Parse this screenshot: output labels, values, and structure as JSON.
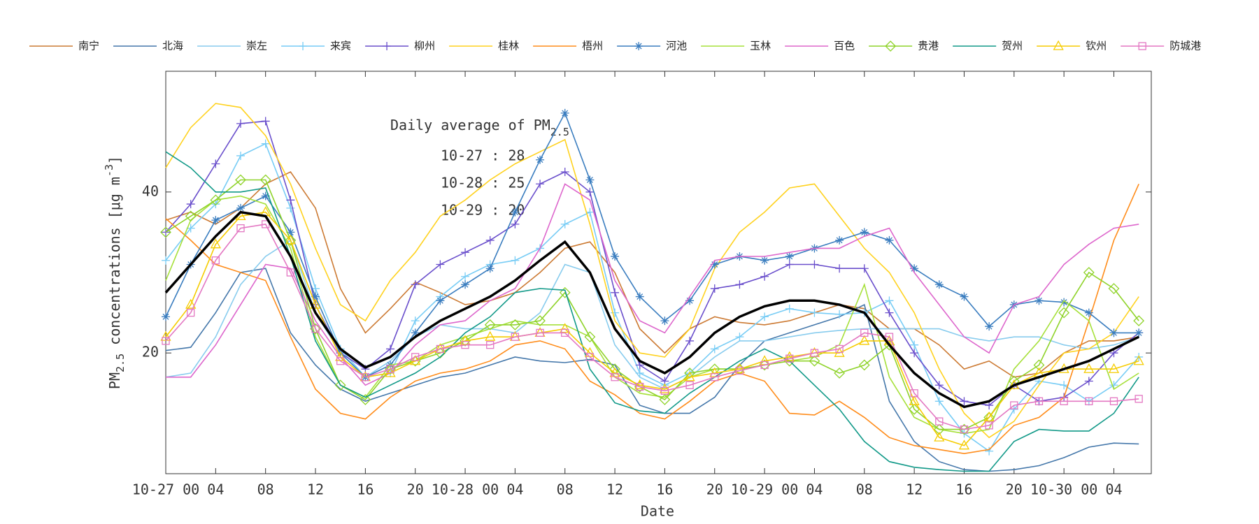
{
  "chart_data": {
    "type": "line",
    "x_label": "Date",
    "y_label": {
      "main": "PM",
      "sub": "2.5",
      "rest": " concentrations [μg m",
      "sup": "-3",
      "end": "]"
    },
    "annotation": {
      "title": "Daily average of PM",
      "title_sub": "2.5",
      "lines": [
        "10-27 : 28",
        "10-28 : 25",
        "10-29 : 20"
      ]
    },
    "x": [
      0,
      2,
      4,
      6,
      8,
      10,
      12,
      14,
      16,
      18,
      20,
      22,
      24,
      26,
      28,
      30,
      32,
      34,
      36,
      38,
      40,
      42,
      44,
      46,
      48,
      50,
      52,
      54,
      56,
      58,
      60,
      62,
      64,
      66,
      68,
      70,
      72,
      74,
      76,
      78
    ],
    "xlim": [
      0,
      79
    ],
    "xticks": [
      {
        "value": 0,
        "label": "10-27 00"
      },
      {
        "value": 4,
        "label": "04"
      },
      {
        "value": 8,
        "label": "08"
      },
      {
        "value": 12,
        "label": "12"
      },
      {
        "value": 16,
        "label": "16"
      },
      {
        "value": 20,
        "label": "20"
      },
      {
        "value": 24,
        "label": "10-28 00"
      },
      {
        "value": 28,
        "label": "04"
      },
      {
        "value": 32,
        "label": "08"
      },
      {
        "value": 36,
        "label": "12"
      },
      {
        "value": 40,
        "label": "16"
      },
      {
        "value": 44,
        "label": "20"
      },
      {
        "value": 48,
        "label": "10-29 00"
      },
      {
        "value": 52,
        "label": "04"
      },
      {
        "value": 56,
        "label": "08"
      },
      {
        "value": 60,
        "label": "12"
      },
      {
        "value": 64,
        "label": "16"
      },
      {
        "value": 68,
        "label": "20"
      },
      {
        "value": 72,
        "label": "10-30 00"
      },
      {
        "value": 76,
        "label": "04"
      }
    ],
    "ylim": [
      5,
      55
    ],
    "yticks": [
      20,
      40
    ],
    "series": [
      {
        "name": "南宁",
        "color": "#cc7a33",
        "marker": "none",
        "values": [
          36.5,
          37.5,
          36,
          38,
          41,
          42.5,
          38,
          28,
          22.5,
          25.5,
          28.8,
          27.5,
          26,
          26.5,
          27.5,
          30,
          33,
          33.8,
          30,
          23,
          20,
          23,
          24.5,
          23.8,
          23.5,
          24,
          25,
          26,
          25.5,
          23,
          23,
          21,
          18,
          19,
          17,
          17.5,
          20,
          21.5,
          21.5,
          22
        ]
      },
      {
        "name": "北海",
        "color": "#4477aa",
        "marker": "none",
        "values": [
          20.3,
          20.7,
          25,
          30,
          30.5,
          22.5,
          18.5,
          15.5,
          14,
          15,
          16,
          17,
          17.5,
          18.5,
          19.5,
          19,
          18.8,
          19.2,
          18.5,
          13.5,
          12.5,
          12.5,
          14.5,
          18.5,
          21.5,
          22.5,
          23.5,
          24.5,
          26,
          14,
          9,
          6.5,
          5.5,
          5.3,
          5.5,
          6,
          7,
          8.3,
          8.8,
          8.7
        ]
      },
      {
        "name": "崇左",
        "color": "#88ccee",
        "marker": "none",
        "values": [
          17,
          17.5,
          22,
          28.5,
          32,
          34,
          25,
          20,
          17,
          19,
          22,
          23.5,
          23,
          23,
          22.5,
          25,
          31,
          30,
          21,
          17,
          15.5,
          17,
          19.5,
          21.5,
          21.5,
          22,
          22.5,
          22.8,
          23,
          23,
          23,
          23,
          22,
          21.5,
          22,
          22,
          21,
          20.5,
          21,
          22
        ]
      },
      {
        "name": "来宾",
        "color": "#77ccf5",
        "marker": "plus",
        "values": [
          31.5,
          35.5,
          38.5,
          44.5,
          46,
          38,
          28,
          20.5,
          17,
          17.5,
          24,
          27,
          29.5,
          31,
          31.5,
          33,
          36,
          37.5,
          25,
          17.5,
          16,
          17.5,
          20.5,
          22,
          24.5,
          25.5,
          25,
          24.8,
          25,
          26.5,
          21,
          14,
          10,
          7.8,
          13,
          16.5,
          16,
          14,
          16,
          19.5
        ]
      },
      {
        "name": "柳州",
        "color": "#6a4fcc",
        "marker": "plus",
        "values": [
          35,
          38.5,
          43.5,
          48.5,
          48.8,
          39,
          26,
          20,
          18,
          20.5,
          28.5,
          31,
          32.5,
          34,
          36,
          41,
          42.5,
          40,
          27.5,
          18.5,
          16.5,
          21.5,
          28,
          28.5,
          29.5,
          31,
          31,
          30.5,
          30.5,
          25,
          20,
          16,
          14,
          13.5,
          16,
          14,
          14.5,
          16.5,
          20,
          22.5
        ]
      },
      {
        "name": "桂林",
        "color": "#ffd21f",
        "marker": "none",
        "values": [
          43,
          48,
          51,
          50.5,
          47,
          41,
          33,
          26,
          24,
          29,
          32.5,
          37,
          39,
          41.5,
          43.5,
          45,
          46.5,
          36,
          24,
          20,
          19.5,
          23,
          30.5,
          35,
          37.5,
          40.5,
          41,
          37,
          33,
          30,
          25,
          18,
          12.5,
          9.5,
          11.5,
          16,
          20,
          20.5,
          22.5,
          27
        ]
      },
      {
        "name": "梧州",
        "color": "#ff8c1a",
        "marker": "none",
        "values": [
          36.7,
          34,
          31,
          30,
          29,
          22,
          15.5,
          12.5,
          11.8,
          14.5,
          16.5,
          17.5,
          18,
          19,
          21,
          21.5,
          20.5,
          16.5,
          14.8,
          12.5,
          11.8,
          14,
          16.5,
          17.5,
          16.5,
          12.5,
          12.3,
          14,
          12,
          9.5,
          8.5,
          8,
          7.5,
          8,
          11,
          12,
          14.5,
          24,
          34,
          41
        ]
      },
      {
        "name": "河池",
        "color": "#3a7dbf",
        "marker": "star",
        "values": [
          24.5,
          31,
          36.5,
          38,
          39.5,
          35,
          27,
          20,
          17,
          18.5,
          22.5,
          26.5,
          28.5,
          30.5,
          37.5,
          44,
          49.8,
          41.5,
          32,
          27,
          24,
          26.5,
          31,
          32,
          31.5,
          32,
          33,
          34,
          35,
          34,
          30.5,
          28.5,
          27,
          23.3,
          26,
          26.5,
          26.3,
          25,
          22.5,
          22.5
        ]
      },
      {
        "name": "玉林",
        "color": "#a6e03a",
        "marker": "none",
        "values": [
          29,
          36.5,
          39,
          39.5,
          38.5,
          33,
          22,
          16,
          14.5,
          18.5,
          19,
          21,
          22,
          23,
          24,
          23.5,
          23.5,
          22,
          17,
          15,
          14.5,
          17,
          18,
          18,
          18.5,
          19,
          19.5,
          21,
          28.5,
          17,
          12,
          10.5,
          10,
          10.5,
          18,
          21.5,
          26.5,
          24,
          15.5,
          17.5
        ]
      },
      {
        "name": "百色",
        "color": "#dd66cc",
        "marker": "none",
        "values": [
          17,
          17,
          21,
          26,
          31,
          30.5,
          24,
          19.5,
          16,
          17.5,
          21,
          23.5,
          24,
          26.5,
          28,
          33,
          41,
          39,
          29,
          24,
          22.5,
          27,
          31.5,
          32,
          32,
          32.5,
          33,
          33,
          34.5,
          35.5,
          30,
          26,
          22,
          20,
          26,
          27,
          31,
          33.5,
          35.5,
          36
        ]
      },
      {
        "name": "贵港",
        "color": "#8fd32a",
        "marker": "diamond",
        "values": [
          35,
          37,
          39,
          41.5,
          41.5,
          34,
          23,
          16,
          14.2,
          18,
          19,
          20,
          21.5,
          23.5,
          23.5,
          24,
          27.5,
          22,
          18,
          15.8,
          14.2,
          17.5,
          18,
          18,
          18.5,
          19,
          19,
          17.5,
          18.5,
          21,
          13,
          10.5,
          10.5,
          12,
          16.5,
          18.5,
          25,
          30,
          28,
          24
        ]
      },
      {
        "name": "贺州",
        "color": "#119988",
        "marker": "none",
        "values": [
          45,
          43,
          40,
          40,
          40.5,
          32,
          21.5,
          16,
          14.5,
          16,
          17.5,
          19.5,
          22.5,
          24.5,
          27.5,
          28,
          27.8,
          18,
          13.8,
          12.8,
          12.5,
          15,
          17,
          19,
          20.5,
          19,
          16,
          13,
          9,
          6.5,
          5.8,
          5.5,
          5.3,
          5.3,
          9,
          10.5,
          10.3,
          10.3,
          12.5,
          17
        ]
      },
      {
        "name": "钦州",
        "color": "#f5cc00",
        "marker": "triangle",
        "values": [
          22,
          26,
          33.5,
          37,
          37.5,
          34,
          26,
          19.5,
          17,
          17.5,
          19,
          20.5,
          21.5,
          22,
          22,
          22.5,
          23,
          20,
          17.5,
          16,
          15.5,
          17,
          17.5,
          18,
          19,
          19.5,
          20,
          20,
          21.5,
          21.5,
          14,
          9.5,
          8.5,
          12,
          16,
          17.5,
          18,
          18,
          18,
          19
        ]
      },
      {
        "name": "防城港",
        "color": "#e377c2",
        "marker": "square",
        "values": [
          21.5,
          25,
          31.5,
          35.5,
          36,
          30,
          23,
          19,
          17,
          18,
          19.5,
          20.5,
          21,
          21,
          22,
          22.5,
          22.5,
          19.5,
          17,
          15.8,
          15.3,
          16,
          17,
          17.8,
          18.5,
          19.3,
          20,
          20.5,
          22.5,
          22,
          15,
          11.5,
          10.5,
          11,
          13.5,
          14,
          14,
          14,
          14,
          14.3
        ]
      }
    ],
    "mean_line": {
      "color": "#000000",
      "values": [
        27.5,
        31,
        34.5,
        37.5,
        37,
        32,
        25,
        20.5,
        18.2,
        19.5,
        22,
        24,
        25.5,
        27,
        29,
        31.5,
        33.8,
        30,
        23,
        19,
        17.5,
        19.5,
        22.5,
        24.5,
        25.8,
        26.5,
        26.5,
        26,
        25,
        21,
        17.5,
        15,
        13.3,
        14,
        16,
        17,
        18,
        19,
        20.5,
        22
      ]
    }
  }
}
